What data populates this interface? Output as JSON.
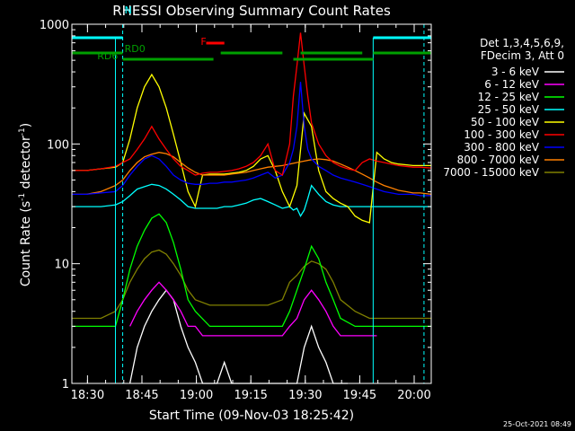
{
  "chart_data": {
    "type": "line",
    "title": "RHESSI Observing Summary Count Rates",
    "xlabel": "Start Time (09-Nov-03 18:25:42)",
    "ylabel_main": "Count Rate (s",
    "ylabel_sup": "-1",
    "ylabel_mid": " detector",
    "ylabel_end": ")",
    "y_scale": "log",
    "ylim": [
      1,
      1000
    ],
    "y_ticks": [
      1,
      10,
      100,
      1000
    ],
    "y_tick_labels": [
      "1",
      "10",
      "100",
      "1000"
    ],
    "x_unit": "minutes since 18:25:42",
    "xlim": [
      0,
      99
    ],
    "x_ticks": [
      4.3,
      19.3,
      34.3,
      49.3,
      64.3,
      79.3,
      94.3
    ],
    "x_tick_labels": [
      "18:30",
      "18:45",
      "19:00",
      "19:15",
      "19:30",
      "19:45",
      "20:00"
    ],
    "footer_timestamp": "25-Oct-2021 08:49",
    "legend_header": [
      "Det 1,3,4,5,6,9,",
      "FDecim 3, Att 0"
    ],
    "legend_position": "right",
    "flags": [
      {
        "label": "N",
        "color": "#00ffff"
      },
      {
        "label": "RD0",
        "color": "#00a000"
      },
      {
        "label": "RD6",
        "color": "#00a000"
      },
      {
        "label": "F",
        "color": "#ff0000"
      }
    ],
    "series": [
      {
        "name": "3 - 6 keV",
        "color": "#ffffff",
        "x": [
          16,
          18,
          20,
          22,
          24,
          26,
          28,
          30,
          32,
          34,
          36,
          38,
          40,
          42,
          44,
          46,
          48,
          50,
          52,
          54,
          56,
          58,
          60,
          62,
          64,
          66,
          68,
          70,
          72,
          74,
          76
        ],
        "y": [
          1,
          2,
          3,
          4,
          5,
          6,
          5,
          3,
          2,
          1.5,
          1,
          1,
          1,
          1.5,
          1,
          1,
          1,
          1,
          1,
          1,
          1,
          1,
          1,
          1,
          2,
          3,
          2,
          1.5,
          1,
          1,
          1
        ]
      },
      {
        "name": "6 - 12 keV",
        "color": "#ff00ff",
        "x": [
          16,
          18,
          20,
          22,
          24,
          26,
          28,
          30,
          32,
          34,
          36,
          38,
          40,
          42,
          44,
          46,
          48,
          50,
          52,
          54,
          56,
          58,
          60,
          62,
          64,
          66,
          68,
          70,
          72,
          74,
          76,
          78,
          80,
          82,
          84
        ],
        "y": [
          3,
          4,
          5,
          6,
          7,
          6,
          5,
          4,
          3,
          3,
          2.5,
          2.5,
          2.5,
          2.5,
          2.5,
          2.5,
          2.5,
          2.5,
          2.5,
          2.5,
          2.5,
          2.5,
          3,
          3.5,
          5,
          6,
          5,
          4,
          3,
          2.5,
          2.5,
          2.5,
          2.5,
          2.5,
          2.5
        ]
      },
      {
        "name": "12 - 25 keV",
        "color": "#00ff00",
        "x": [
          0,
          4,
          8,
          12,
          14,
          16,
          18,
          20,
          22,
          24,
          26,
          28,
          30,
          32,
          34,
          38,
          42,
          46,
          50,
          54,
          58,
          60,
          62,
          64,
          66,
          68,
          70,
          72,
          74,
          78,
          82,
          86,
          90,
          94,
          99
        ],
        "y": [
          3,
          3,
          3,
          3,
          5,
          9,
          14,
          19,
          24,
          26,
          22,
          15,
          9,
          5,
          4,
          3,
          3,
          3,
          3,
          3,
          3,
          4,
          6,
          9,
          14,
          11,
          7,
          5,
          3.5,
          3,
          3,
          3,
          3,
          3,
          3
        ]
      },
      {
        "name": "25 - 50 keV",
        "color": "#00ffff",
        "x": [
          0,
          4,
          8,
          12,
          14,
          16,
          18,
          20,
          22,
          24,
          26,
          28,
          30,
          32,
          34,
          36,
          38,
          40,
          42,
          44,
          46,
          48,
          50,
          52,
          54,
          56,
          58,
          60,
          61,
          62,
          63,
          64,
          65,
          66,
          68,
          70,
          72,
          74,
          76,
          78,
          80,
          82,
          84,
          86,
          88,
          90,
          92,
          94,
          96,
          99
        ],
        "y": [
          30,
          30,
          30,
          31,
          33,
          37,
          42,
          44,
          46,
          45,
          42,
          38,
          34,
          30,
          29,
          29,
          29,
          29,
          30,
          30,
          31,
          32,
          34,
          35,
          33,
          31,
          29,
          30,
          28,
          29,
          25,
          28,
          35,
          45,
          38,
          33,
          31,
          30,
          30,
          30,
          30,
          30,
          30,
          30,
          30,
          30,
          30,
          30,
          30,
          30
        ]
      },
      {
        "name": "50 - 100 keV",
        "color": "#ffff00",
        "x": [
          0,
          4,
          8,
          12,
          14,
          16,
          18,
          20,
          22,
          24,
          26,
          28,
          30,
          32,
          34,
          36,
          38,
          40,
          42,
          44,
          46,
          48,
          50,
          52,
          54,
          56,
          58,
          60,
          62,
          64,
          66,
          68,
          70,
          72,
          74,
          76,
          78,
          80,
          82,
          84,
          86,
          88,
          90,
          92,
          94,
          96,
          99
        ],
        "y": [
          60,
          60,
          62,
          64,
          70,
          110,
          200,
          300,
          380,
          300,
          200,
          120,
          70,
          40,
          30,
          55,
          56,
          56,
          56,
          57,
          58,
          60,
          65,
          75,
          80,
          60,
          40,
          30,
          45,
          180,
          140,
          60,
          40,
          35,
          32,
          30,
          25,
          23,
          22,
          85,
          75,
          70,
          68,
          67,
          66,
          66,
          66
        ]
      },
      {
        "name": "100 - 300 keV",
        "color": "#ff0000",
        "x": [
          0,
          4,
          8,
          12,
          14,
          16,
          18,
          20,
          22,
          24,
          26,
          28,
          30,
          32,
          34,
          36,
          38,
          40,
          42,
          44,
          46,
          48,
          50,
          52,
          54,
          56,
          58,
          60,
          61,
          62,
          63,
          64,
          65,
          66,
          68,
          70,
          72,
          74,
          76,
          78,
          80,
          82,
          84,
          86,
          88,
          90,
          92,
          94,
          96,
          99
        ],
        "y": [
          60,
          60,
          62,
          65,
          70,
          75,
          90,
          110,
          140,
          110,
          90,
          75,
          65,
          60,
          55,
          57,
          58,
          58,
          59,
          60,
          62,
          65,
          70,
          80,
          100,
          60,
          55,
          100,
          250,
          450,
          850,
          450,
          250,
          150,
          100,
          80,
          70,
          65,
          62,
          60,
          70,
          75,
          72,
          70,
          68,
          66,
          65,
          64,
          64,
          63
        ]
      },
      {
        "name": "300 - 800 keV",
        "color": "#0000ff",
        "x": [
          0,
          4,
          8,
          12,
          14,
          16,
          18,
          20,
          22,
          24,
          26,
          28,
          30,
          32,
          34,
          36,
          38,
          40,
          42,
          44,
          46,
          48,
          50,
          52,
          54,
          56,
          58,
          60,
          61,
          62,
          63,
          64,
          65,
          66,
          68,
          70,
          72,
          74,
          76,
          78,
          80,
          82,
          84,
          86,
          88,
          90,
          92,
          94,
          96,
          99
        ],
        "y": [
          38,
          38,
          39,
          40,
          45,
          55,
          65,
          75,
          80,
          75,
          65,
          55,
          50,
          47,
          46,
          46,
          47,
          47,
          48,
          48,
          49,
          50,
          52,
          55,
          58,
          52,
          55,
          70,
          90,
          140,
          330,
          140,
          90,
          75,
          65,
          60,
          55,
          52,
          50,
          48,
          46,
          44,
          42,
          40,
          39,
          38,
          38,
          38,
          37,
          37
        ]
      },
      {
        "name": "800 - 7000 keV",
        "color": "#ff8000",
        "x": [
          0,
          4,
          8,
          12,
          14,
          16,
          18,
          20,
          22,
          24,
          26,
          28,
          30,
          32,
          34,
          36,
          38,
          40,
          42,
          44,
          46,
          48,
          50,
          52,
          54,
          56,
          58,
          60,
          62,
          64,
          66,
          68,
          70,
          72,
          74,
          76,
          78,
          80,
          82,
          84,
          86,
          88,
          90,
          92,
          94,
          96,
          99
        ],
        "y": [
          38,
          38,
          40,
          45,
          50,
          60,
          70,
          78,
          82,
          85,
          83,
          78,
          70,
          63,
          58,
          55,
          55,
          55,
          55,
          56,
          57,
          58,
          60,
          62,
          64,
          65,
          66,
          68,
          70,
          72,
          74,
          75,
          74,
          72,
          68,
          64,
          60,
          56,
          52,
          48,
          45,
          43,
          41,
          40,
          39,
          39,
          38
        ]
      },
      {
        "name": "7000 - 15000 keV",
        "color": "#808000",
        "x": [
          0,
          4,
          8,
          12,
          14,
          16,
          18,
          20,
          22,
          24,
          26,
          28,
          30,
          32,
          34,
          38,
          42,
          46,
          50,
          54,
          58,
          60,
          62,
          64,
          66,
          68,
          70,
          72,
          74,
          78,
          82,
          86,
          90,
          94,
          99
        ],
        "y": [
          3.5,
          3.5,
          3.5,
          4,
          5,
          7,
          9,
          11,
          12.5,
          13,
          12,
          10,
          8,
          6,
          5,
          4.5,
          4.5,
          4.5,
          4.5,
          4.5,
          5,
          7,
          8,
          9.5,
          10.5,
          10,
          9,
          7,
          5,
          4,
          3.5,
          3.5,
          3.5,
          3.5,
          3.5
        ]
      }
    ]
  }
}
